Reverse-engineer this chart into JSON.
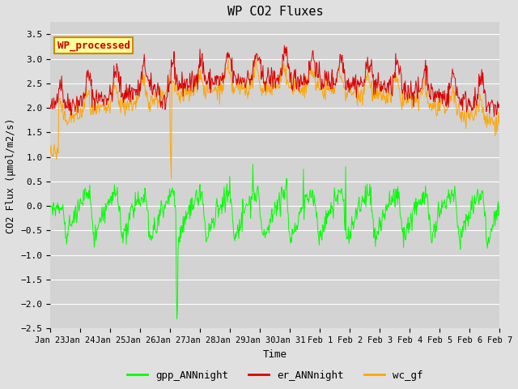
{
  "title": "WP CO2 Fluxes",
  "xlabel": "Time",
  "ylabel": "CO2 Flux (μmol/m2/s)",
  "ylim": [
    -2.5,
    3.75
  ],
  "yticks": [
    -2.5,
    -2.0,
    -1.5,
    -1.0,
    -0.5,
    0.0,
    0.5,
    1.0,
    1.5,
    2.0,
    2.5,
    3.0,
    3.5
  ],
  "background_color": "#e0e0e0",
  "plot_bg_color": "#d3d3d3",
  "legend_labels": [
    "gpp_ANNnight",
    "er_ANNnight",
    "wc_gf"
  ],
  "legend_colors": [
    "#00ff00",
    "#dd0000",
    "#ffa500"
  ],
  "annotation_text": "WP_processed",
  "annotation_color": "#cc0000",
  "annotation_bg": "#ffff99",
  "annotation_border": "#cc8800",
  "line_colors": {
    "gpp": "#00ff00",
    "er": "#dd0000",
    "wc": "#ffa500"
  },
  "seed": 42,
  "n_points": 800
}
